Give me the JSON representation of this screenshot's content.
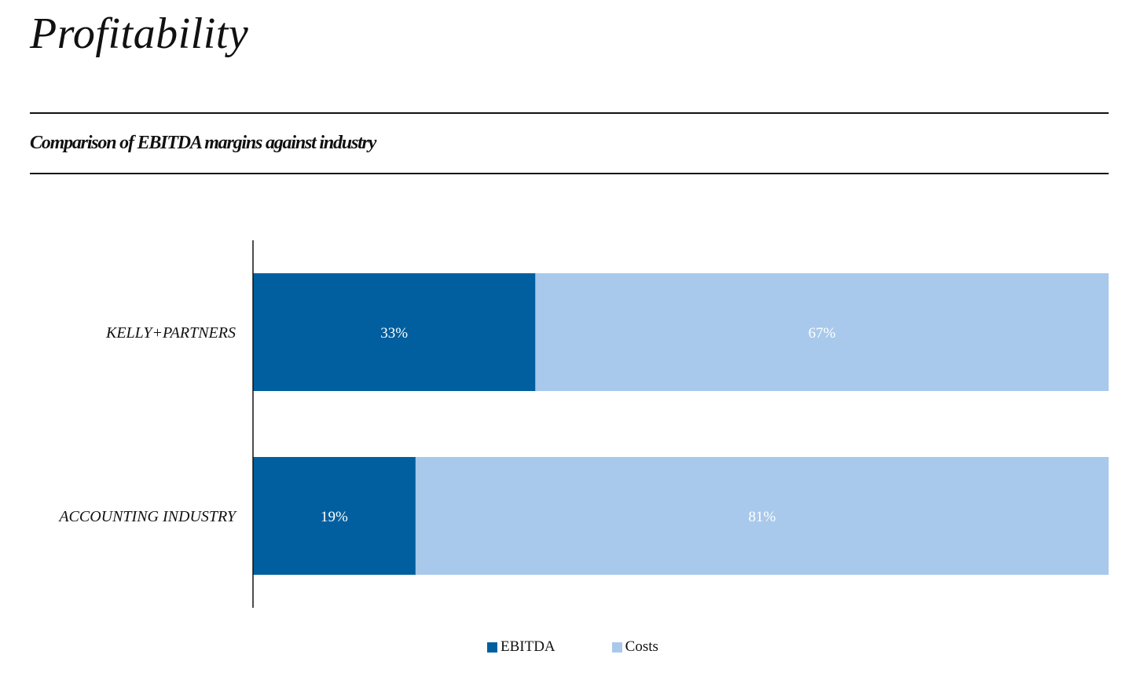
{
  "page": {
    "title": "Profitability"
  },
  "chart_data": {
    "type": "bar",
    "orientation": "horizontal",
    "stacked": true,
    "title": "Comparison of EBITDA margins against industry",
    "categories": [
      "KELLY+PARTNERS",
      "ACCOUNTING INDUSTRY"
    ],
    "series": [
      {
        "name": "EBITDA",
        "color": "#015f9f",
        "values": [
          33,
          19
        ],
        "labels": [
          "33%",
          "19%"
        ]
      },
      {
        "name": "Costs",
        "color": "#a8c9eb",
        "values": [
          67,
          81
        ],
        "labels": [
          "67%",
          "81%"
        ]
      }
    ],
    "xlim": [
      0,
      100
    ],
    "grid": false,
    "legend": "bottom-center"
  }
}
